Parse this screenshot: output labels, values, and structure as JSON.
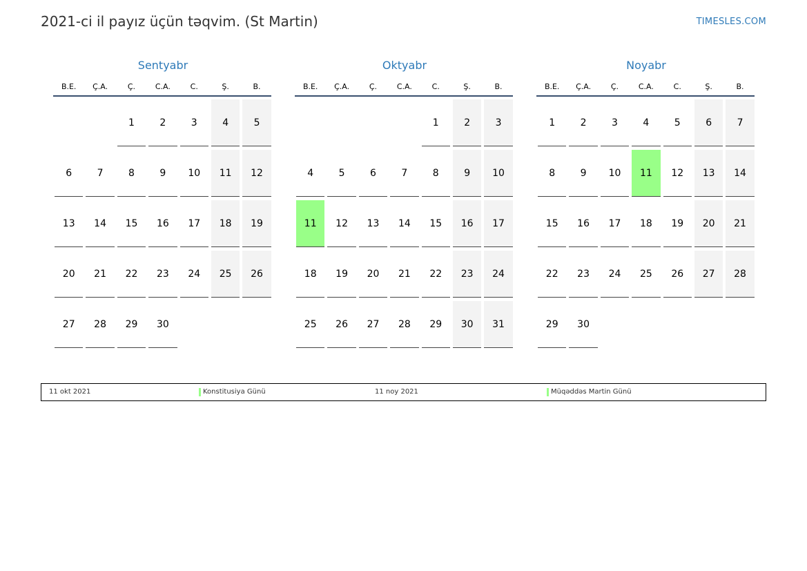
{
  "title": "2021-ci il payız üçün təqvim. (St Martin)",
  "site": "TIMESLES.COM",
  "weekday_labels": [
    "B.E.",
    "Ç.A.",
    "Ç.",
    "C.A.",
    "C.",
    "Ş.",
    "B."
  ],
  "colors": {
    "accent": "#2e7ab8",
    "holiday": "#99ff88",
    "weekend": "#f3f3f3"
  },
  "months": [
    {
      "name": "Sentyabr",
      "weeks": [
        [
          "",
          "",
          "1",
          "2",
          "3",
          "4",
          "5"
        ],
        [
          "6",
          "7",
          "8",
          "9",
          "10",
          "11",
          "12"
        ],
        [
          "13",
          "14",
          "15",
          "16",
          "17",
          "18",
          "19"
        ],
        [
          "20",
          "21",
          "22",
          "23",
          "24",
          "25",
          "26"
        ],
        [
          "27",
          "28",
          "29",
          "30",
          "",
          "",
          ""
        ]
      ],
      "holidays": []
    },
    {
      "name": "Oktyabr",
      "weeks": [
        [
          "",
          "",
          "",
          "",
          "1",
          "2",
          "3"
        ],
        [
          "4",
          "5",
          "6",
          "7",
          "8",
          "9",
          "10"
        ],
        [
          "11",
          "12",
          "13",
          "14",
          "15",
          "16",
          "17"
        ],
        [
          "18",
          "19",
          "20",
          "21",
          "22",
          "23",
          "24"
        ],
        [
          "25",
          "26",
          "27",
          "28",
          "29",
          "30",
          "31"
        ]
      ],
      "holidays": [
        "11"
      ]
    },
    {
      "name": "Noyabr",
      "weeks": [
        [
          "1",
          "2",
          "3",
          "4",
          "5",
          "6",
          "7"
        ],
        [
          "8",
          "9",
          "10",
          "11",
          "12",
          "13",
          "14"
        ],
        [
          "15",
          "16",
          "17",
          "18",
          "19",
          "20",
          "21"
        ],
        [
          "22",
          "23",
          "24",
          "25",
          "26",
          "27",
          "28"
        ],
        [
          "29",
          "30",
          "",
          "",
          "",
          "",
          ""
        ]
      ],
      "holidays": [
        "11"
      ]
    }
  ],
  "legend": [
    {
      "date": "11 okt 2021",
      "name": "Konstitusiya Günü"
    },
    {
      "date": "11 noy 2021",
      "name": "Müqəddəs Martin Günü"
    }
  ]
}
